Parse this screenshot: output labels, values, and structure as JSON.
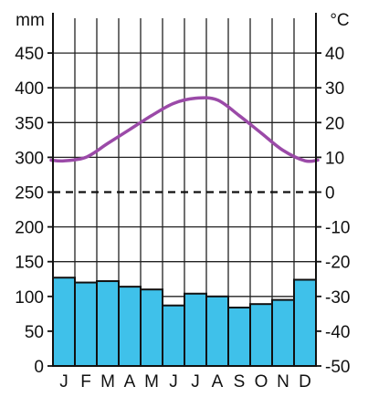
{
  "chart_data": {
    "type": "bar",
    "title": "",
    "categories": [
      "J",
      "F",
      "M",
      "A",
      "M",
      "J",
      "J",
      "A",
      "S",
      "O",
      "N",
      "D"
    ],
    "precipitation": {
      "unit": "mm",
      "values": [
        127,
        120,
        122,
        114,
        110,
        87,
        104,
        100,
        84,
        89,
        95,
        124
      ],
      "ylim": [
        0,
        500
      ],
      "ticks": [
        0,
        50,
        100,
        150,
        200,
        250,
        300,
        350,
        400,
        450
      ],
      "color": "#3fc1ea"
    },
    "temperature": {
      "unit": "°C",
      "values": [
        9,
        10,
        14,
        18,
        22,
        25.5,
        27,
        26.5,
        22,
        17,
        12,
        9
      ],
      "ylim": [
        -50,
        50
      ],
      "ticks": [
        -50,
        -40,
        -30,
        -20,
        -10,
        0,
        10,
        20,
        30,
        40
      ],
      "color": "#9b4aa8"
    },
    "zero_line": "dashed",
    "grid": true
  }
}
